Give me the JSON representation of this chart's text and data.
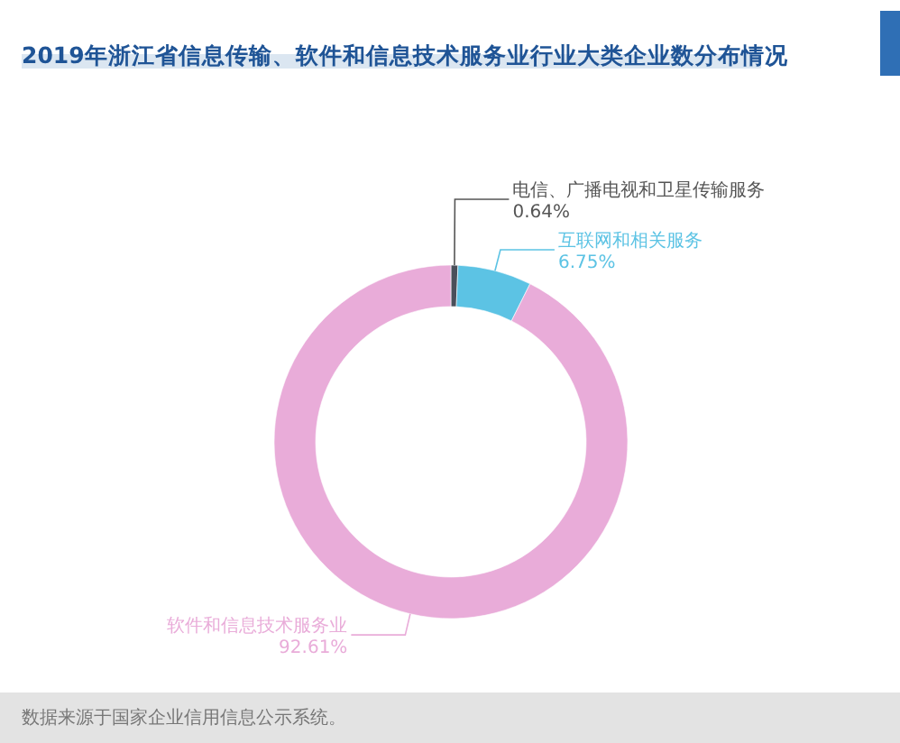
{
  "chart_data": {
    "type": "donut",
    "title": "2019年浙江省信息传输、软件和信息技术服务业行业大类企业数分布情况",
    "categories": [
      "电信、广播电视和卫星传输服务",
      "互联网和相关服务",
      "软件和信息技术服务业"
    ],
    "values": [
      0.64,
      6.75,
      92.61
    ],
    "colors": [
      "#4a4f5a",
      "#5cc3e4",
      "#e9acd9"
    ],
    "value_labels": [
      "0.64%",
      "6.75%",
      "92.61%"
    ],
    "annotations": [
      "数据来源于国家企业信用信息公示系统。"
    ],
    "legend": false
  }
}
